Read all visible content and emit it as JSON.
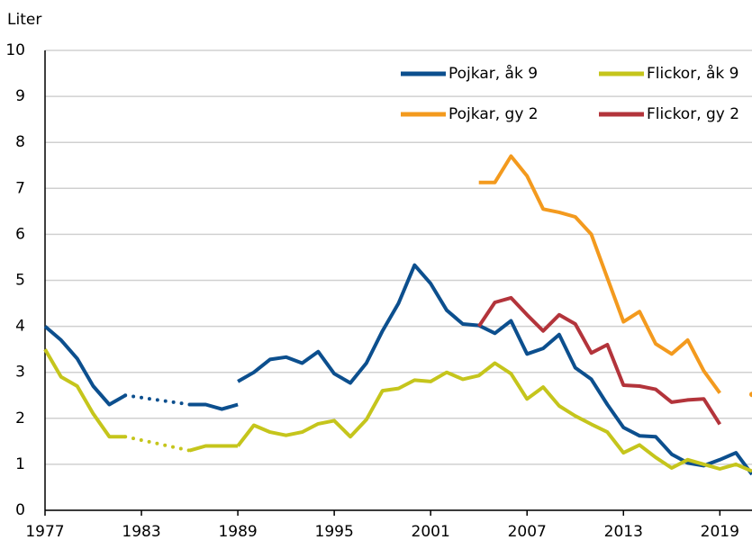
{
  "chart_data": {
    "type": "line",
    "y_label": "Liter",
    "x": [
      1977,
      1978,
      1979,
      1980,
      1981,
      1982,
      1983,
      1984,
      1985,
      1986,
      1987,
      1988,
      1989,
      null,
      1989,
      1990,
      1991,
      1992,
      1993,
      1994,
      1995,
      1996,
      1997,
      1998,
      1999,
      2000,
      2001,
      2002,
      2003,
      2004,
      2005,
      2006,
      2007,
      2008,
      2009,
      2010,
      2011,
      2012,
      2013,
      2014,
      2015,
      2016,
      2017,
      2018,
      2019,
      2020,
      2021
    ],
    "series": [
      {
        "name": "Pojkar, åk 9",
        "color": "#0c4f8e",
        "gap_style": "dotted",
        "values": [
          4.0,
          3.7,
          3.3,
          2.7,
          2.3,
          2.5,
          null,
          null,
          null,
          2.3,
          2.3,
          2.2,
          2.3,
          null,
          2.8,
          3.0,
          3.28,
          3.33,
          3.2,
          3.45,
          2.97,
          2.77,
          3.2,
          3.9,
          4.5,
          5.33,
          4.93,
          4.35,
          4.05,
          4.02,
          3.85,
          4.12,
          3.4,
          3.52,
          3.82,
          3.1,
          2.85,
          2.3,
          1.8,
          1.62,
          1.6,
          1.22,
          1.03,
          0.97,
          1.1,
          1.25,
          0.78
        ]
      },
      {
        "name": "Flickor, åk 9",
        "color": "#c5c51c",
        "gap_style": "dotted",
        "values": [
          3.5,
          2.9,
          2.7,
          2.1,
          1.6,
          1.6,
          null,
          null,
          null,
          1.3,
          1.4,
          1.4,
          1.4,
          null,
          1.4,
          1.85,
          1.7,
          1.63,
          1.7,
          1.88,
          1.95,
          1.6,
          1.97,
          2.6,
          2.65,
          2.83,
          2.8,
          3.0,
          2.85,
          2.93,
          3.2,
          2.97,
          2.42,
          2.68,
          2.27,
          2.05,
          1.87,
          1.7,
          1.25,
          1.42,
          1.15,
          0.92,
          1.1,
          1.0,
          0.9,
          1.0,
          0.85
        ]
      },
      {
        "name": "Pojkar, gy 2",
        "color": "#f39a1e",
        "values": [
          null,
          null,
          null,
          null,
          null,
          null,
          null,
          null,
          null,
          null,
          null,
          null,
          null,
          null,
          null,
          null,
          null,
          null,
          null,
          null,
          null,
          null,
          null,
          null,
          null,
          null,
          null,
          null,
          null,
          7.13,
          7.13,
          7.7,
          7.27,
          6.55,
          6.48,
          6.38,
          6.0,
          5.05,
          4.1,
          4.32,
          3.62,
          3.4,
          3.7,
          3.03,
          2.55,
          null,
          2.52
        ]
      },
      {
        "name": "Flickor, gy 2",
        "color": "#b3343b",
        "values": [
          null,
          null,
          null,
          null,
          null,
          null,
          null,
          null,
          null,
          null,
          null,
          null,
          null,
          null,
          null,
          null,
          null,
          null,
          null,
          null,
          null,
          null,
          null,
          null,
          null,
          null,
          null,
          null,
          null,
          4.0,
          4.52,
          4.62,
          4.25,
          3.9,
          4.25,
          4.05,
          3.42,
          3.6,
          2.72,
          2.7,
          2.63,
          2.35,
          2.4,
          2.42,
          1.87,
          null,
          null
        ]
      }
    ],
    "xlim": [
      1977,
      2021
    ],
    "xticks": [
      1977,
      1983,
      1989,
      1995,
      2001,
      2007,
      2013,
      2019
    ],
    "ylim": [
      0,
      10
    ],
    "yticks": [
      0,
      1,
      2,
      3,
      4,
      5,
      6,
      7,
      8,
      9,
      10
    ],
    "grid": true,
    "legend": "top-right"
  }
}
